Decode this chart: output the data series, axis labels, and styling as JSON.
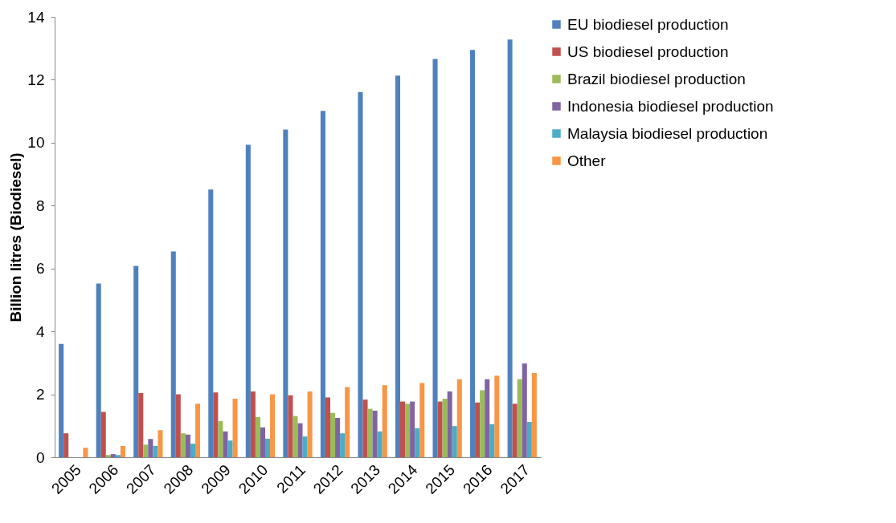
{
  "chart_data": {
    "type": "bar",
    "ylabel": "Billion litres (Biodiesel)",
    "categories": [
      "2005",
      "2006",
      "2007",
      "2008",
      "2009",
      "2010",
      "2011",
      "2012",
      "2013",
      "2014",
      "2015",
      "2016",
      "2017"
    ],
    "series": [
      {
        "name": "EU biodiesel production",
        "color": "#4f81bd",
        "values": [
          3.6,
          5.52,
          6.08,
          6.54,
          8.51,
          9.93,
          10.42,
          11.01,
          11.61,
          12.13,
          12.66,
          12.95,
          13.28
        ]
      },
      {
        "name": "US biodiesel production",
        "color": "#c0504d",
        "values": [
          0.76,
          1.44,
          2.04,
          2.0,
          2.06,
          2.09,
          1.97,
          1.9,
          1.83,
          1.77,
          1.77,
          1.74,
          1.7
        ]
      },
      {
        "name": "Brazil biodiesel production",
        "color": "#9bbb59",
        "values": [
          null,
          0.07,
          0.4,
          0.76,
          1.15,
          1.28,
          1.31,
          1.41,
          1.54,
          1.7,
          1.86,
          2.13,
          2.48
        ]
      },
      {
        "name": "Indonesia biodiesel production",
        "color": "#8064a2",
        "values": [
          null,
          0.1,
          0.58,
          0.72,
          0.82,
          0.95,
          1.08,
          1.25,
          1.48,
          1.77,
          2.09,
          2.48,
          2.98
        ]
      },
      {
        "name": "Malaysia biodiesel production",
        "color": "#4bacc6",
        "values": [
          null,
          0.07,
          0.36,
          0.43,
          0.53,
          0.59,
          0.66,
          0.76,
          0.82,
          0.92,
          0.99,
          1.05,
          1.12
        ]
      },
      {
        "name": "Other",
        "color": "#f79646",
        "values": [
          0.3,
          0.36,
          0.86,
          1.7,
          1.86,
          2.0,
          2.09,
          2.23,
          2.29,
          2.36,
          2.48,
          2.59,
          2.68
        ]
      }
    ],
    "ylim": [
      0,
      14
    ],
    "yticks": [
      0,
      2,
      4,
      6,
      8,
      10,
      12,
      14
    ],
    "grid": false,
    "legend": "right"
  }
}
